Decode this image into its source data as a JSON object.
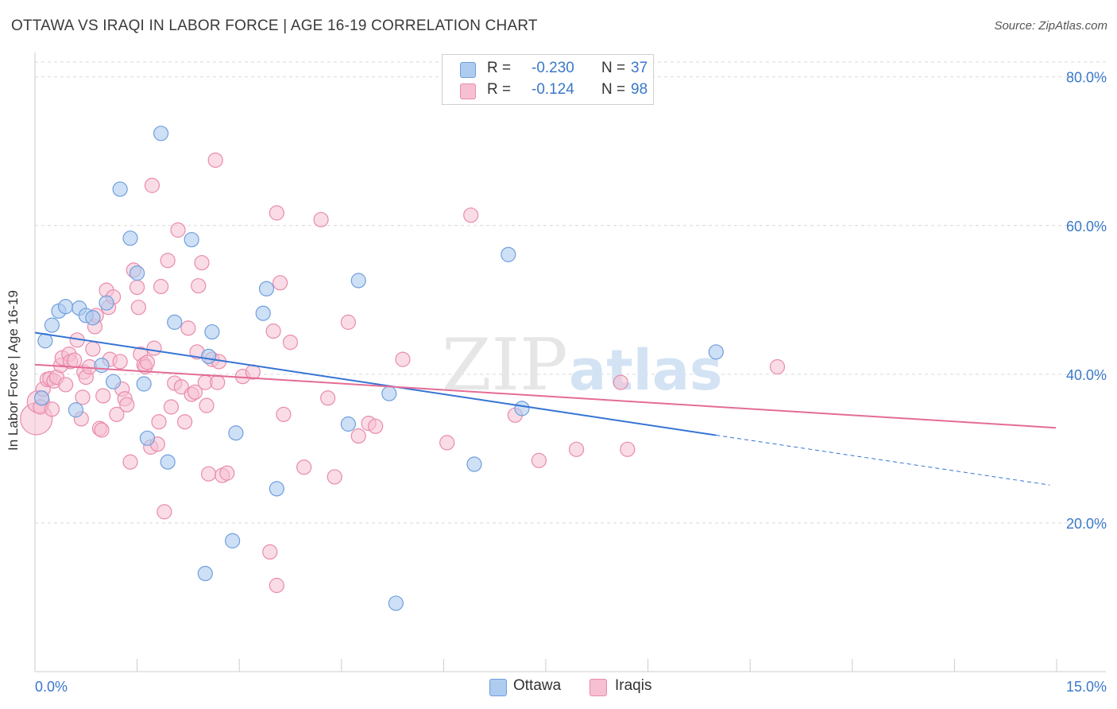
{
  "title": "OTTAWA VS IRAQI IN LABOR FORCE | AGE 16-19 CORRELATION CHART",
  "source": "Source: ZipAtlas.com",
  "watermark_zip": "ZIP",
  "watermark_atlas": "atlas",
  "colors": {
    "blue_fill": "#aecbf0",
    "blue_stroke": "#6f9fdc",
    "blue_line": "#3574d4",
    "pink_fill": "#f6bfd2",
    "pink_stroke": "#e98bab",
    "pink_line": "#e46c96",
    "axis_text": "#3a78c9",
    "grid": "#d9d9d9"
  },
  "legend": {
    "ottawa": {
      "r_label": "R =",
      "r_value": "-0.230",
      "n_label": "N =",
      "n_value": "37",
      "name": "Ottawa"
    },
    "iraqis": {
      "r_label": "R =",
      "r_value": "-0.124",
      "n_label": "N =",
      "n_value": "98",
      "name": "Iraqis"
    }
  },
  "chart_data": {
    "type": "scatter",
    "title": "OTTAWA VS IRAQI IN LABOR FORCE | AGE 16-19 CORRELATION CHART",
    "xlabel": "",
    "ylabel": "In Labor Force | Age 16-19",
    "xlim": [
      0,
      15
    ],
    "ylim": [
      0,
      82
    ],
    "x_tick_labels": [
      {
        "value": 0,
        "label": "0.0%"
      },
      {
        "value": 15,
        "label": "15.0%"
      }
    ],
    "y_ticks": [
      {
        "value": 20,
        "label": "20.0%"
      },
      {
        "value": 40,
        "label": "40.0%"
      },
      {
        "value": 60,
        "label": "60.0%"
      },
      {
        "value": 80,
        "label": "80.0%"
      }
    ],
    "x_minor_ticks": [
      0,
      1.5,
      3,
      4.5,
      6,
      7.5,
      9,
      10.5,
      12,
      13.5,
      15
    ],
    "series": [
      {
        "name": "Ottawa",
        "r": -0.23,
        "n": 37,
        "trend": {
          "x0": 0,
          "y0": 45.6,
          "x1": 10.0,
          "y1": 31.8,
          "dash_to_x": 14.9,
          "dash_to_y": 25.1
        },
        "points": [
          [
            0.1,
            36.8
          ],
          [
            0.15,
            44.5
          ],
          [
            0.25,
            46.6
          ],
          [
            0.35,
            48.5
          ],
          [
            0.45,
            49.1
          ],
          [
            0.6,
            35.2
          ],
          [
            0.65,
            48.9
          ],
          [
            0.75,
            47.9
          ],
          [
            0.85,
            47.6
          ],
          [
            0.98,
            41.2
          ],
          [
            1.05,
            49.6
          ],
          [
            1.15,
            39.0
          ],
          [
            1.25,
            64.9
          ],
          [
            1.4,
            58.3
          ],
          [
            1.5,
            53.6
          ],
          [
            1.6,
            38.7
          ],
          [
            1.65,
            31.4
          ],
          [
            1.85,
            72.4
          ],
          [
            1.95,
            28.2
          ],
          [
            2.05,
            47.0
          ],
          [
            2.3,
            58.1
          ],
          [
            2.5,
            13.2
          ],
          [
            2.55,
            42.4
          ],
          [
            2.6,
            45.7
          ],
          [
            2.9,
            17.6
          ],
          [
            2.95,
            32.1
          ],
          [
            3.35,
            48.2
          ],
          [
            3.4,
            51.5
          ],
          [
            3.55,
            24.6
          ],
          [
            4.6,
            33.3
          ],
          [
            4.75,
            52.6
          ],
          [
            5.2,
            37.4
          ],
          [
            5.3,
            9.2
          ],
          [
            6.45,
            27.9
          ],
          [
            6.95,
            56.1
          ],
          [
            7.15,
            35.4
          ],
          [
            10.0,
            43.0
          ]
        ]
      },
      {
        "name": "Iraqis",
        "r": -0.124,
        "n": 98,
        "trend": {
          "x0": 0,
          "y0": 41.3,
          "x1": 14.99,
          "y1": 32.8
        },
        "points": [
          [
            0.02,
            34.0
          ],
          [
            0.05,
            36.3
          ],
          [
            0.08,
            35.6
          ],
          [
            0.12,
            38.0
          ],
          [
            0.18,
            39.3
          ],
          [
            0.22,
            39.4
          ],
          [
            0.28,
            39.1
          ],
          [
            0.32,
            39.6
          ],
          [
            0.38,
            41.2
          ],
          [
            0.4,
            42.2
          ],
          [
            0.45,
            38.6
          ],
          [
            0.5,
            42.7
          ],
          [
            0.52,
            41.7
          ],
          [
            0.58,
            41.9
          ],
          [
            0.62,
            44.6
          ],
          [
            0.68,
            34.0
          ],
          [
            0.7,
            36.9
          ],
          [
            0.72,
            40.3
          ],
          [
            0.75,
            39.6
          ],
          [
            0.8,
            41.0
          ],
          [
            0.85,
            43.4
          ],
          [
            0.88,
            46.4
          ],
          [
            0.9,
            47.9
          ],
          [
            0.95,
            32.7
          ],
          [
            0.98,
            32.5
          ],
          [
            1.0,
            37.1
          ],
          [
            1.05,
            51.3
          ],
          [
            1.08,
            49.0
          ],
          [
            1.1,
            42.0
          ],
          [
            1.15,
            50.4
          ],
          [
            1.2,
            34.6
          ],
          [
            1.25,
            41.7
          ],
          [
            1.28,
            38.0
          ],
          [
            1.32,
            36.7
          ],
          [
            1.35,
            35.9
          ],
          [
            1.4,
            28.2
          ],
          [
            1.45,
            54.0
          ],
          [
            1.5,
            51.7
          ],
          [
            1.52,
            49.0
          ],
          [
            1.55,
            42.7
          ],
          [
            1.6,
            41.3
          ],
          [
            1.62,
            41.0
          ],
          [
            1.65,
            41.6
          ],
          [
            1.7,
            30.2
          ],
          [
            1.72,
            65.4
          ],
          [
            1.75,
            43.5
          ],
          [
            1.8,
            30.6
          ],
          [
            1.82,
            33.6
          ],
          [
            1.85,
            51.8
          ],
          [
            1.9,
            21.5
          ],
          [
            1.95,
            55.3
          ],
          [
            2.0,
            35.6
          ],
          [
            2.05,
            38.8
          ],
          [
            2.1,
            59.4
          ],
          [
            2.15,
            38.3
          ],
          [
            2.2,
            33.6
          ],
          [
            2.25,
            46.2
          ],
          [
            2.3,
            37.3
          ],
          [
            2.35,
            37.6
          ],
          [
            2.38,
            43.0
          ],
          [
            2.4,
            51.9
          ],
          [
            2.45,
            55.0
          ],
          [
            2.5,
            38.9
          ],
          [
            2.52,
            35.8
          ],
          [
            2.55,
            26.6
          ],
          [
            2.6,
            42.0
          ],
          [
            2.65,
            68.8
          ],
          [
            2.68,
            38.9
          ],
          [
            2.7,
            41.7
          ],
          [
            2.75,
            26.4
          ],
          [
            2.82,
            26.7
          ],
          [
            3.05,
            39.7
          ],
          [
            3.2,
            40.3
          ],
          [
            3.45,
            16.1
          ],
          [
            3.5,
            45.8
          ],
          [
            3.55,
            61.7
          ],
          [
            3.55,
            11.6
          ],
          [
            3.6,
            52.3
          ],
          [
            3.65,
            34.6
          ],
          [
            3.75,
            44.3
          ],
          [
            3.95,
            27.5
          ],
          [
            4.2,
            60.8
          ],
          [
            4.3,
            36.8
          ],
          [
            4.4,
            26.2
          ],
          [
            4.6,
            47.0
          ],
          [
            4.75,
            31.7
          ],
          [
            4.9,
            33.4
          ],
          [
            5.0,
            33.0
          ],
          [
            5.4,
            42.0
          ],
          [
            6.05,
            30.8
          ],
          [
            6.4,
            61.4
          ],
          [
            7.05,
            34.5
          ],
          [
            7.4,
            28.4
          ],
          [
            7.95,
            29.9
          ],
          [
            8.6,
            38.9
          ],
          [
            8.7,
            29.9
          ],
          [
            10.9,
            41.0
          ],
          [
            0.25,
            35.3
          ]
        ]
      }
    ]
  }
}
